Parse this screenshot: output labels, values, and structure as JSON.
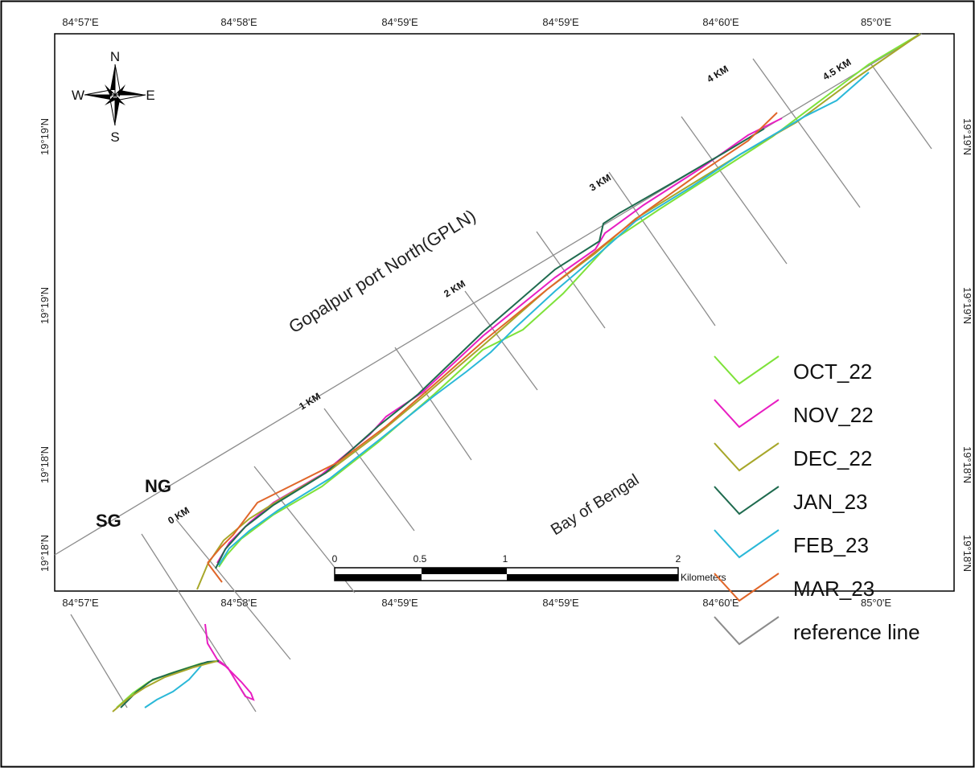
{
  "map": {
    "top_longitude_labels": [
      "84°57'E",
      "84°58'E",
      "84°59'E",
      "84°59'E",
      "84°60'E",
      "85°0'E"
    ],
    "bottom_longitude_labels": [
      "84°57'E",
      "84°58'E",
      "84°59'E",
      "84°59'E",
      "84°60'E",
      "85°0'E"
    ],
    "left_latitude_labels": [
      "19°19'N",
      "19°19'N",
      "19°18'N",
      "19°18'N"
    ],
    "right_latitude_labels": [
      "19°19'N",
      "19°19'N",
      "19°18'N",
      "19°18'N"
    ],
    "place_labels": {
      "area": "Gopalpur port North(GPLN)",
      "sea": "Bay of Bengal",
      "south_groyne": "SG",
      "north_groyne": "NG"
    },
    "distance_markers": [
      "0 KM",
      "1 KM",
      "2 KM",
      "3 KM",
      "4 KM",
      "4.5 KM"
    ],
    "north_arrow": {
      "n": "N",
      "e": "E",
      "s": "S",
      "w": "W",
      "icon": "compass-rose-icon"
    },
    "scale_bar": {
      "ticks": [
        "0",
        "0.5",
        "1",
        "2"
      ],
      "units": "Kilometers"
    },
    "legend": [
      {
        "label": "OCT_22",
        "color": "#7ee23a"
      },
      {
        "label": "NOV_22",
        "color": "#e81ec2"
      },
      {
        "label": "DEC_22",
        "color": "#a7a72a"
      },
      {
        "label": "JAN_23",
        "color": "#1f6b4f"
      },
      {
        "label": "FEB_23",
        "color": "#2ab8d8"
      },
      {
        "label": "MAR_23",
        "color": "#e0662a"
      },
      {
        "label": "reference line",
        "color": "#8c8c8c"
      }
    ]
  }
}
